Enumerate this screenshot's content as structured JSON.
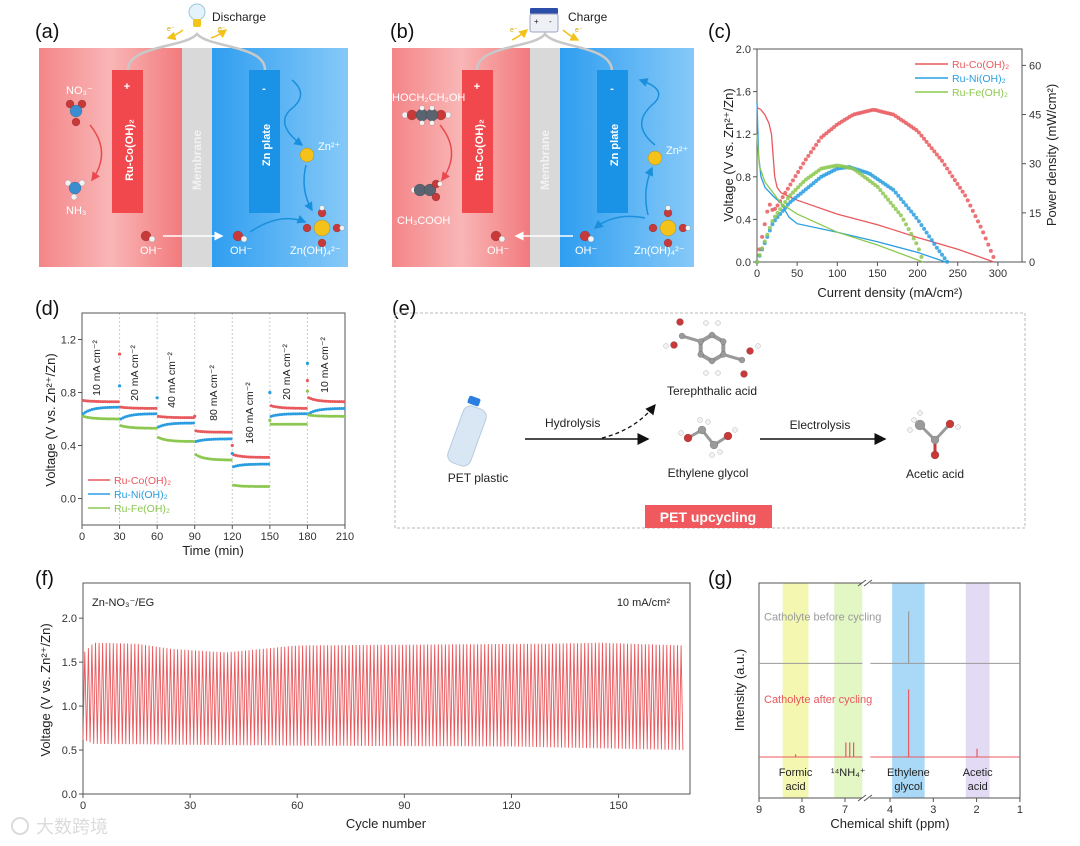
{
  "panels": {
    "a": {
      "label": "(a)",
      "mode": "Discharge",
      "electron_left": "e⁻",
      "electron_right": "e⁻",
      "reactant": "NO₃⁻",
      "product": "NH₃",
      "cathode": "Ru-Co(OH)₂",
      "cathode_sign": "+",
      "membrane": "Membrane",
      "anode": "Zn plate",
      "anode_sign": "-",
      "zn_ion": "Zn²⁺",
      "hydroxide_left": "OH⁻",
      "hydroxide_right": "OH⁻",
      "zincate": "Zn(OH)₄²⁻"
    },
    "b": {
      "label": "(b)",
      "mode": "Charge",
      "electron_left": "e⁻",
      "electron_right": "e⁻",
      "reactant": "HOCH₂CH₂OH",
      "product": "CH₃COOH",
      "cathode": "Ru-Co(OH)₂",
      "cathode_sign": "+",
      "membrane": "Membrane",
      "anode": "Zn plate",
      "anode_sign": "-",
      "zn_ion": "Zn²⁺",
      "hydroxide_left": "OH⁻",
      "hydroxide_right": "OH⁻",
      "zincate": "Zn(OH)₄²⁻"
    },
    "c": {
      "label": "(c)"
    },
    "d": {
      "label": "(d)"
    },
    "e": {
      "label": "(e)",
      "start": "PET plastic",
      "step1": "Hydrolysis",
      "byproduct": "Terephthalic acid",
      "intermediate": "Ethylene glycol",
      "step2": "Electrolysis",
      "final": "Acetic acid",
      "badge": "PET upcycling"
    },
    "f": {
      "label": "(f)"
    },
    "g": {
      "label": "(g)"
    }
  },
  "watermark": "大数跨境",
  "colors": {
    "co": "#e8595d",
    "ni": "#2a9de0",
    "fe": "#8cc850",
    "accent": "#f05a5f"
  },
  "chart_data": [
    {
      "panel": "c",
      "type": "line+scatter",
      "xlabel": "Current density (mA/cm²)",
      "ylabel": "Voltage (V vs. Zn²⁺/Zn)",
      "y2label": "Power density (mW/cm²)",
      "xlim": [
        0,
        330
      ],
      "ylim": [
        0,
        2.0
      ],
      "y2lim": [
        0,
        65
      ],
      "xticks": [
        "0",
        "50",
        "100",
        "150",
        "200",
        "250",
        "300"
      ],
      "yticks": [
        "0.0",
        "0.4",
        "0.8",
        "1.2",
        "1.6",
        "2.0"
      ],
      "y2ticks": [
        "0",
        "15",
        "30",
        "45",
        "60"
      ],
      "legend": "top-right",
      "series": [
        {
          "name": "Ru-Co(OH)₂",
          "color": "#e8595d",
          "voltage": [
            [
              0,
              1.45
            ],
            [
              5,
              1.43
            ],
            [
              10,
              1.38
            ],
            [
              15,
              1.3
            ],
            [
              18,
              1.2
            ],
            [
              20,
              1.0
            ],
            [
              22,
              0.8
            ],
            [
              25,
              0.7
            ],
            [
              30,
              0.65
            ],
            [
              50,
              0.58
            ],
            [
              100,
              0.45
            ],
            [
              150,
              0.35
            ],
            [
              200,
              0.23
            ],
            [
              250,
              0.12
            ],
            [
              295,
              0.0
            ]
          ],
          "power": [
            [
              0,
              0
            ],
            [
              5,
              6
            ],
            [
              10,
              12
            ],
            [
              15,
              18
            ],
            [
              20,
              15.5
            ],
            [
              25,
              17
            ],
            [
              40,
              23
            ],
            [
              60,
              31
            ],
            [
              80,
              38
            ],
            [
              100,
              42
            ],
            [
              120,
              45
            ],
            [
              145,
              46.5
            ],
            [
              170,
              45
            ],
            [
              200,
              40
            ],
            [
              230,
              31
            ],
            [
              260,
              20
            ],
            [
              280,
              10
            ],
            [
              297,
              0
            ]
          ]
        },
        {
          "name": "Ru-Ni(OH)₂",
          "color": "#2a9de0",
          "voltage": [
            [
              0,
              1.5
            ],
            [
              2,
              1.0
            ],
            [
              5,
              0.8
            ],
            [
              10,
              0.7
            ],
            [
              20,
              0.62
            ],
            [
              30,
              0.55
            ],
            [
              40,
              0.42
            ],
            [
              50,
              0.36
            ],
            [
              100,
              0.28
            ],
            [
              150,
              0.19
            ],
            [
              200,
              0.09
            ],
            [
              235,
              0.0
            ]
          ],
          "power": [
            [
              0,
              0
            ],
            [
              20,
              12
            ],
            [
              40,
              18
            ],
            [
              60,
              22
            ],
            [
              80,
              26
            ],
            [
              100,
              28.5
            ],
            [
              115,
              29
            ],
            [
              140,
              27
            ],
            [
              170,
              22
            ],
            [
              200,
              13
            ],
            [
              225,
              4
            ],
            [
              237,
              0
            ]
          ]
        },
        {
          "name": "Ru-Fe(OH)₂",
          "color": "#8cc850",
          "voltage": [
            [
              0,
              1.2
            ],
            [
              3,
              0.9
            ],
            [
              10,
              0.75
            ],
            [
              20,
              0.65
            ],
            [
              30,
              0.55
            ],
            [
              50,
              0.45
            ],
            [
              100,
              0.28
            ],
            [
              150,
              0.16
            ],
            [
              207,
              0.0
            ]
          ],
          "power": [
            [
              0,
              0
            ],
            [
              20,
              13
            ],
            [
              40,
              20
            ],
            [
              60,
              25
            ],
            [
              80,
              28.5
            ],
            [
              100,
              29.5
            ],
            [
              120,
              28.5
            ],
            [
              150,
              23
            ],
            [
              180,
              14
            ],
            [
              200,
              5
            ],
            [
              207,
              0
            ]
          ]
        }
      ]
    },
    {
      "panel": "d",
      "type": "scatter",
      "xlabel": "Time (min)",
      "ylabel": "Voltage (V vs. Zn²⁺/Zn)",
      "xlim": [
        0,
        210
      ],
      "ylim": [
        -0.2,
        1.4
      ],
      "xticks": [
        "0",
        "30",
        "60",
        "90",
        "120",
        "150",
        "180",
        "210"
      ],
      "yticks": [
        "0.0",
        "0.4",
        "0.8",
        "1.2"
      ],
      "segment_minutes": 30,
      "current_densities": [
        "10 mA cm⁻²",
        "20 mA cm⁻²",
        "40 mA cm⁻²",
        "80 mA cm⁻²",
        "160 mA cm⁻²",
        "20 mA cm⁻²",
        "10 mA cm⁻²"
      ],
      "legend": "bottom-left",
      "series": [
        {
          "name": "Ru-Co(OH)₂",
          "color": "#e8595d",
          "segments": [
            [
              0.74,
              0.73
            ],
            [
              0.69,
              0.68
            ],
            [
              0.62,
              0.61
            ],
            [
              0.51,
              0.5
            ],
            [
              0.33,
              0.31
            ],
            [
              0.7,
              0.68
            ],
            [
              0.76,
              0.73
            ]
          ],
          "spikes": [
            [
              30,
              1.09
            ],
            [
              90,
              0.62
            ],
            [
              120,
              0.4
            ],
            [
              180,
              0.89
            ]
          ]
        },
        {
          "name": "Ru-Ni(OH)₂",
          "color": "#2a9de0",
          "segments": [
            [
              0.64,
              0.69
            ],
            [
              0.6,
              0.64
            ],
            [
              0.54,
              0.57
            ],
            [
              0.43,
              0.45
            ],
            [
              0.24,
              0.26
            ],
            [
              0.62,
              0.64
            ],
            [
              0.64,
              0.68
            ]
          ],
          "spikes": [
            [
              30,
              0.85
            ],
            [
              60,
              0.76
            ],
            [
              120,
              0.34
            ],
            [
              150,
              0.8
            ],
            [
              180,
              1.02
            ]
          ]
        },
        {
          "name": "Ru-Fe(OH)₂",
          "color": "#8cc850",
          "segments": [
            [
              0.62,
              0.6
            ],
            [
              0.55,
              0.53
            ],
            [
              0.46,
              0.43
            ],
            [
              0.33,
              0.29
            ],
            [
              0.1,
              0.09
            ],
            [
              0.56,
              0.56
            ],
            [
              0.63,
              0.62
            ]
          ],
          "spikes": [
            [
              150,
              0.59
            ],
            [
              180,
              0.81
            ]
          ]
        }
      ]
    },
    {
      "panel": "f",
      "type": "line",
      "xlabel": "Cycle number",
      "ylabel": "Voltage (V vs. Zn²⁺/Zn)",
      "xlim": [
        0,
        170
      ],
      "ylim": [
        0,
        2.4
      ],
      "xticks": [
        "0",
        "30",
        "60",
        "90",
        "120",
        "150"
      ],
      "yticks": [
        "0.0",
        "0.5",
        "1.0",
        "1.5",
        "2.0"
      ],
      "system": "Zn-NO₃⁻/EG",
      "current_density": "10 mA/cm²",
      "cycles": 168,
      "color": "#e8595d",
      "upper_envelope": [
        [
          0,
          1.6
        ],
        [
          3,
          1.72
        ],
        [
          15,
          1.71
        ],
        [
          25,
          1.65
        ],
        [
          40,
          1.61
        ],
        [
          60,
          1.69
        ],
        [
          130,
          1.71
        ],
        [
          145,
          1.72
        ],
        [
          168,
          1.69
        ]
      ],
      "lower_envelope": [
        [
          0,
          0.62
        ],
        [
          3,
          0.57
        ],
        [
          30,
          0.56
        ],
        [
          60,
          0.55
        ],
        [
          120,
          0.54
        ],
        [
          168,
          0.5
        ]
      ]
    },
    {
      "panel": "g",
      "type": "line",
      "xlabel": "Chemical shift (ppm)",
      "ylabel": "Intensity (a.u.)",
      "xlim": [
        9,
        1
      ],
      "axis_break": [
        6.5,
        4.5
      ],
      "xticks": [
        "9",
        "8",
        "7",
        "4",
        "3",
        "2",
        "1"
      ],
      "bands": [
        {
          "label": [
            "Formic",
            "acid"
          ],
          "range": [
            8.45,
            7.85
          ],
          "color": "#f4f7b0"
        },
        {
          "label": [
            "¹⁴NH₄⁺"
          ],
          "range": [
            7.25,
            6.6
          ],
          "color": "#e2f7c4"
        },
        {
          "label": [
            "Ethylene",
            "glycol"
          ],
          "range": [
            3.95,
            3.2
          ],
          "color": "#a9d9f6"
        },
        {
          "label": [
            "Acetic",
            "acid"
          ],
          "range": [
            2.25,
            1.7
          ],
          "color": "#e3dbf4"
        }
      ],
      "series": [
        {
          "name": "Catholyte before cycling",
          "color": "#9a9a9a",
          "offset": 1.8,
          "peaks": [
            {
              "ppm": 3.57,
              "height": 1.0
            }
          ]
        },
        {
          "name": "Catholyte after cycling",
          "color": "#e8595d",
          "offset": 0,
          "peaks": [
            {
              "ppm": 8.15,
              "height": 0.05
            },
            {
              "ppm": 6.98,
              "height": 0.28
            },
            {
              "ppm": 6.89,
              "height": 0.28
            },
            {
              "ppm": 6.8,
              "height": 0.28
            },
            {
              "ppm": 3.57,
              "height": 1.3
            },
            {
              "ppm": 1.99,
              "height": 0.16
            }
          ]
        }
      ]
    }
  ]
}
